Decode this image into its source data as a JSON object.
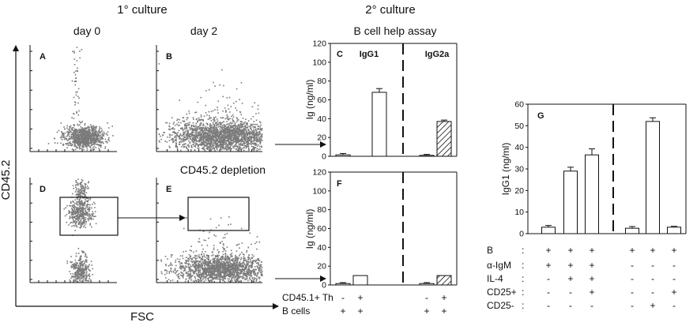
{
  "colors": {
    "dots": "#7a7a7a",
    "ink": "#111111",
    "bar_fill": "#ffffff"
  },
  "headers": {
    "primary": "1° culture",
    "secondary": "2° culture",
    "day0": "day 0",
    "day2": "day 2",
    "assay": "B cell help assay",
    "depletion": "CD45.2 depletion",
    "yaxis": "CD45.2",
    "xaxis": "FSC"
  },
  "flow_panels": [
    {
      "letter": "A"
    },
    {
      "letter": "B"
    },
    {
      "letter": "D"
    },
    {
      "letter": "E"
    }
  ],
  "chart_data": [
    {
      "type": "bar",
      "panel": "C",
      "ylabel": "Ig (ng/ml)",
      "ylim": [
        0,
        120
      ],
      "yticks": [
        0,
        20,
        40,
        60,
        80,
        100,
        120
      ],
      "groups": [
        "IgG1",
        "IgG2a"
      ],
      "values": [
        1.5,
        68,
        1,
        37
      ],
      "errors": [
        1.5,
        4,
        1,
        1.5
      ],
      "patterns": [
        "open",
        "open",
        "open",
        "hatched"
      ]
    },
    {
      "type": "bar",
      "panel": "F",
      "ylabel": "Ig (ng/ml)",
      "ylim": [
        0,
        120
      ],
      "yticks": [
        0,
        20,
        40,
        60,
        80,
        100,
        120
      ],
      "values": [
        1.5,
        10,
        1.5,
        10
      ],
      "errors": [
        1,
        0,
        1,
        0
      ],
      "patterns": [
        "open",
        "open",
        "open",
        "hatched"
      ],
      "table": {
        "rows": [
          {
            "label": "CD45.1+ Th",
            "marks": [
              "-",
              "+",
              "-",
              "+"
            ]
          },
          {
            "label": "B cells",
            "marks": [
              "+",
              "+",
              "+",
              "+"
            ]
          }
        ]
      }
    },
    {
      "type": "bar",
      "panel": "G",
      "ylabel": "IgG1 (ng/ml)",
      "ylim": [
        0,
        60
      ],
      "yticks": [
        0,
        10,
        20,
        30,
        40,
        50,
        60
      ],
      "values": [
        3,
        29,
        36.5,
        2.5,
        52,
        3
      ],
      "errors": [
        0.8,
        1.8,
        2.8,
        0.8,
        1.7,
        0.4
      ],
      "table": {
        "rows": [
          {
            "label": "B",
            "colon": ":",
            "marks": [
              "+",
              "+",
              "+",
              "+",
              "+",
              "+"
            ]
          },
          {
            "label": "α-IgM",
            "colon": ":",
            "marks": [
              "+",
              "+",
              "+",
              "-",
              "-",
              "-"
            ]
          },
          {
            "label": "IL-4",
            "colon": ":",
            "marks": [
              "-",
              "+",
              "+",
              "-",
              "-",
              "-"
            ]
          },
          {
            "label": "CD25+",
            "colon": ":",
            "marks": [
              "-",
              "-",
              "+",
              "-",
              "-",
              "+"
            ]
          },
          {
            "label": "CD25-",
            "colon": ":",
            "marks": [
              "-",
              "-",
              "-",
              "-",
              "+",
              "-"
            ]
          }
        ]
      }
    }
  ]
}
